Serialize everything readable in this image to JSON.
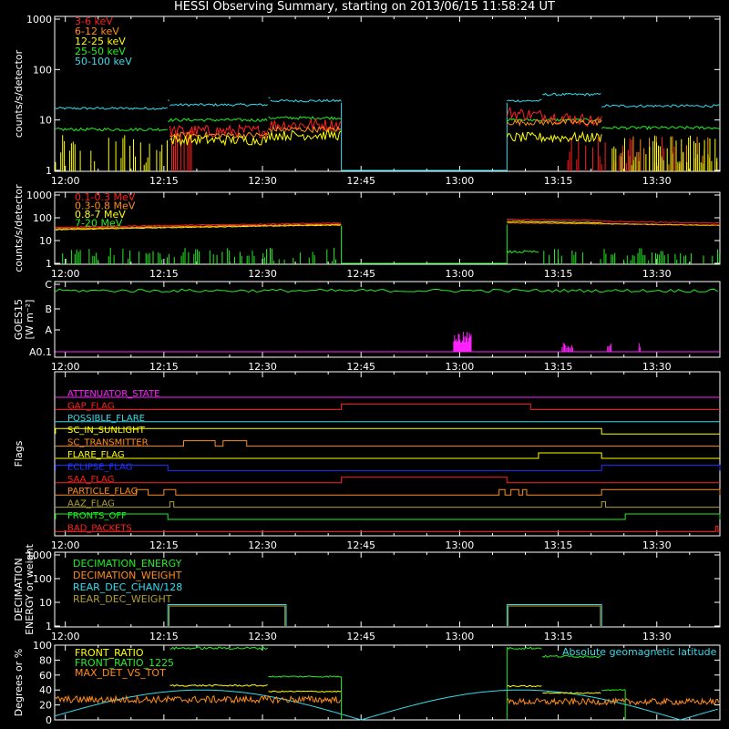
{
  "title": "HESSI Observing Summary, starting on 2013/06/15 11:58:24 UT",
  "colors": {
    "background": "#000000",
    "axes": "#ffffff",
    "red": "#ff2020",
    "orange": "#ff8c1a",
    "yellow": "#ffff00",
    "green": "#22ee22",
    "cyan": "#33ddee",
    "magenta": "#ff22ff",
    "blue": "#2233ff",
    "olive": "#b0a030"
  },
  "chart_data": [
    {
      "id": "panel1",
      "type": "line",
      "ylabel": "counts/s/detector",
      "yscale": "log",
      "ylim": [
        1,
        1000
      ],
      "yticks": [
        "1",
        "10",
        "100",
        "1000"
      ],
      "xlabels": [
        "12:00",
        "12:15",
        "12:30",
        "12:45",
        "13:00",
        "13:15",
        "13:30"
      ],
      "legend": [
        {
          "name": "3-6 keV",
          "color": "#ff2020"
        },
        {
          "name": "6-12 keV",
          "color": "#ff8c1a"
        },
        {
          "name": "12-25 keV",
          "color": "#ffff00"
        },
        {
          "name": "25-50 keV",
          "color": "#22ee22"
        },
        {
          "name": "50-100 keV",
          "color": "#33ddee"
        }
      ]
    },
    {
      "id": "panel2",
      "type": "line",
      "ylabel": "counts/s/detector",
      "yscale": "log",
      "ylim": [
        1,
        1000
      ],
      "yticks": [
        "1",
        "10",
        "100",
        "1000"
      ],
      "xlabels": [
        "12:00",
        "12:15",
        "12:30",
        "12:45",
        "13:00",
        "13:15",
        "13:30"
      ],
      "legend": [
        {
          "name": "0.1-0.3 MeV",
          "color": "#ff2020"
        },
        {
          "name": "0.3-0.8 MeV",
          "color": "#ff8c1a"
        },
        {
          "name": "0.8-7 MeV",
          "color": "#ffff00"
        },
        {
          "name": "7-20 MeV",
          "color": "#22ee22"
        }
      ]
    },
    {
      "id": "panel3",
      "type": "line",
      "ylabel": "GOES15",
      "ylabel2": "[W m⁻²]",
      "yticks": [
        "A0.1",
        "A",
        "B",
        "C"
      ],
      "xlabels": [
        "12:00",
        "12:15",
        "12:30",
        "12:45",
        "13:00",
        "13:15",
        "13:30"
      ]
    },
    {
      "id": "panel4",
      "type": "line",
      "ylabel": "Flags",
      "xlabels": [
        "12:00",
        "12:15",
        "12:30",
        "12:45",
        "13:00",
        "13:15",
        "13:30"
      ],
      "flags": [
        {
          "name": "ATTENUATOR_STATE",
          "color": "#ff22ff",
          "intervals": []
        },
        {
          "name": "GAP_FLAG",
          "color": "#ff2020",
          "intervals": [
            [
              12.7,
              13.18
            ]
          ]
        },
        {
          "name": "POSSIBLE_FLARE",
          "color": "#33ddee",
          "intervals": []
        },
        {
          "name": "SC_IN_SUNLIGHT",
          "color": "#ffff00",
          "intervals": [
            [
              11.975,
              13.36
            ]
          ]
        },
        {
          "name": "SC_TRANSMITTER",
          "color": "#ff8c1a",
          "intervals": [
            [
              12.3,
              12.38
            ],
            [
              12.4,
              12.46
            ]
          ]
        },
        {
          "name": "FLARE_FLAG",
          "color": "#ffff00",
          "intervals": [
            [
              13.2,
              13.36
            ]
          ]
        },
        {
          "name": "ECLIPSE_FLAG",
          "color": "#2233ff",
          "intervals": [
            [
              11.975,
              12.26
            ],
            [
              13.36,
              13.66
            ]
          ]
        },
        {
          "name": "SAA_FLAG",
          "color": "#ff2020",
          "intervals": [
            [
              12.7,
              13.12
            ]
          ]
        },
        {
          "name": "PARTICLE_FLAG",
          "color": "#ff8c1a",
          "intervals": [
            [
              12.18,
              12.21
            ],
            [
              12.25,
              12.28
            ],
            [
              13.1,
              13.115
            ],
            [
              13.13,
              13.15
            ],
            [
              13.16,
              13.17
            ],
            [
              13.36,
              13.66
            ]
          ]
        },
        {
          "name": "AAZ_FLAG",
          "color": "#b0a030",
          "intervals": [
            [
              12.265,
              12.275
            ],
            [
              13.36,
              13.37
            ]
          ]
        },
        {
          "name": "FRONTS_OFF",
          "color": "#22ee22",
          "intervals": [
            [
              11.975,
              12.26
            ],
            [
              13.42,
              13.66
            ]
          ]
        },
        {
          "name": "BAD_PACKETS",
          "color": "#ff2020",
          "intervals": [
            [
              13.65,
              13.655
            ]
          ]
        }
      ]
    },
    {
      "id": "panel5",
      "type": "line",
      "ylabel": "DECIMATION",
      "ylabel2": "ENERGY or weight",
      "yscale": "log",
      "ylim": [
        1,
        1000
      ],
      "yticks": [
        "1",
        "10",
        "100",
        "1000"
      ],
      "xlabels": [
        "12:00",
        "12:15",
        "12:30",
        "12:45",
        "13:00",
        "13:15",
        "13:30"
      ],
      "legend": [
        {
          "name": "DECIMATION_ENERGY",
          "color": "#22ee22"
        },
        {
          "name": "DECIMATION_WEIGHT",
          "color": "#ff8c1a"
        },
        {
          "name": "REAR_DEC_CHAN/128",
          "color": "#33ddee"
        },
        {
          "name": "REAR_DEC_WEIGHT",
          "color": "#b0a030"
        }
      ]
    },
    {
      "id": "panel6",
      "type": "line",
      "ylabel": "Degrees or %",
      "ylim": [
        0,
        100
      ],
      "yticks": [
        "0",
        "20",
        "40",
        "60",
        "80",
        "100"
      ],
      "xlabels": [
        "12:00",
        "12:15",
        "12:30",
        "12:45",
        "13:00",
        "13:15",
        "13:30"
      ],
      "legend": [
        {
          "name": "FRONT_RATIO",
          "color": "#ffff00"
        },
        {
          "name": "FRONT_RATIO_1225",
          "color": "#22ee22"
        },
        {
          "name": "MAX_DET_VS_TOT",
          "color": "#ff8c1a"
        }
      ],
      "annotation": {
        "text": "Absolute geomagnetic latitude",
        "color": "#33ddee"
      }
    }
  ]
}
